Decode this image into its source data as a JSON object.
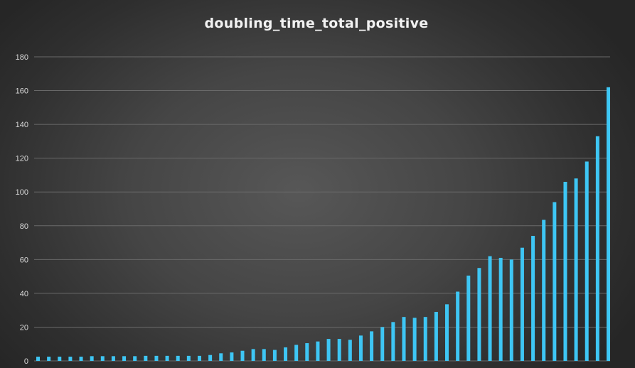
{
  "chart_data": {
    "type": "bar",
    "title": "doubling_time_total_positive",
    "xlabel": "",
    "ylabel": "",
    "ylim": [
      0,
      180
    ],
    "yticks": [
      "0",
      "20",
      "40",
      "60",
      "80",
      "100",
      "120",
      "140",
      "160",
      "180"
    ],
    "grid": true,
    "bar_color": "#3ec6f4",
    "values": [
      2.5,
      2.5,
      2.5,
      2.5,
      2.5,
      2.8,
      2.8,
      2.8,
      2.8,
      2.8,
      3,
      3,
      3,
      3,
      3,
      3,
      3.5,
      4.5,
      5,
      6,
      7,
      7,
      6.5,
      8,
      9.5,
      10.5,
      11.5,
      13,
      13,
      12.5,
      15,
      17.5,
      20,
      23,
      26,
      25.5,
      26,
      29,
      33.5,
      41,
      50.5,
      55,
      62,
      61,
      60,
      67,
      74,
      83.5,
      94,
      106,
      108,
      118,
      133,
      162
    ]
  }
}
